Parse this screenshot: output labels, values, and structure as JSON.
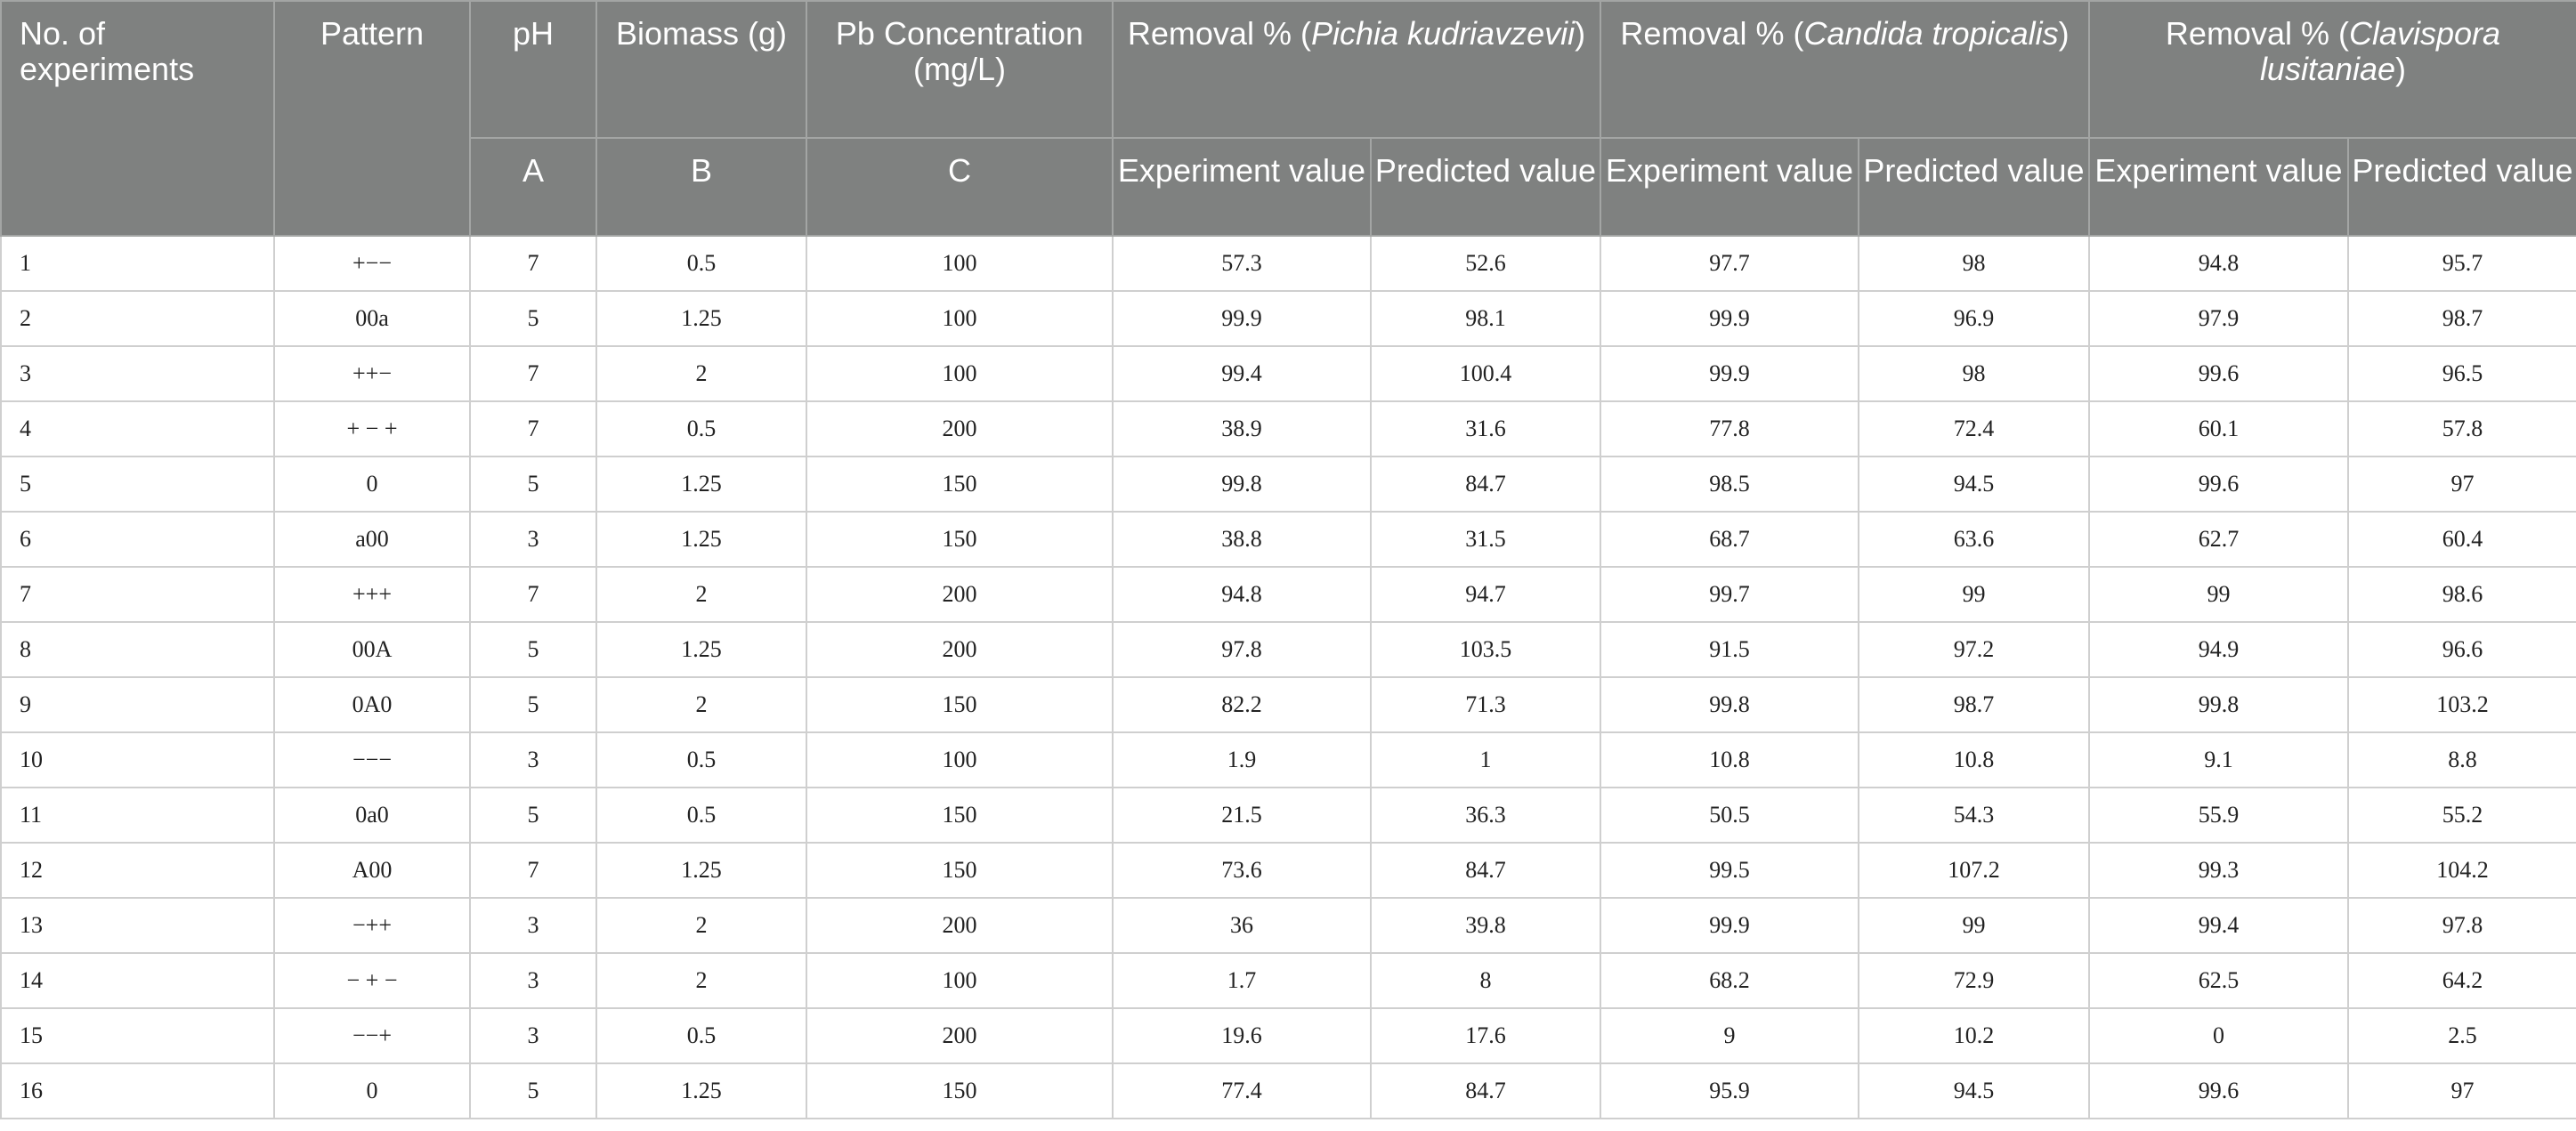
{
  "header": {
    "no_experiments": "No. of experiments",
    "pattern": "Pattern",
    "ph": "pH",
    "biomass": "Biomass (g)",
    "pb_conc": "Pb Concentration (mg/L)",
    "removal_prefix": "Removal % (",
    "removal_suffix": ")",
    "species": [
      "Pichia kudriavzevii",
      "Candida tropicalis",
      "Clavispora lusitaniae"
    ],
    "code_a": "A",
    "code_b": "B",
    "code_c": "C",
    "experiment_value": "Experiment value",
    "predicted_value": "Predicted value"
  },
  "rows": [
    [
      "1",
      "+−−",
      "7",
      "0.5",
      "100",
      "57.3",
      "52.6",
      "97.7",
      "98",
      "94.8",
      "95.7"
    ],
    [
      "2",
      "00a",
      "5",
      "1.25",
      "100",
      "99.9",
      "98.1",
      "99.9",
      "96.9",
      "97.9",
      "98.7"
    ],
    [
      "3",
      "++−",
      "7",
      "2",
      "100",
      "99.4",
      "100.4",
      "99.9",
      "98",
      "99.6",
      "96.5"
    ],
    [
      "4",
      "+ − +",
      "7",
      "0.5",
      "200",
      "38.9",
      "31.6",
      "77.8",
      "72.4",
      "60.1",
      "57.8"
    ],
    [
      "5",
      "0",
      "5",
      "1.25",
      "150",
      "99.8",
      "84.7",
      "98.5",
      "94.5",
      "99.6",
      "97"
    ],
    [
      "6",
      "a00",
      "3",
      "1.25",
      "150",
      "38.8",
      "31.5",
      "68.7",
      "63.6",
      "62.7",
      "60.4"
    ],
    [
      "7",
      "+++",
      "7",
      "2",
      "200",
      "94.8",
      "94.7",
      "99.7",
      "99",
      "99",
      "98.6"
    ],
    [
      "8",
      "00A",
      "5",
      "1.25",
      "200",
      "97.8",
      "103.5",
      "91.5",
      "97.2",
      "94.9",
      "96.6"
    ],
    [
      "9",
      "0A0",
      "5",
      "2",
      "150",
      "82.2",
      "71.3",
      "99.8",
      "98.7",
      "99.8",
      "103.2"
    ],
    [
      "10",
      "−−−",
      "3",
      "0.5",
      "100",
      "1.9",
      "1",
      "10.8",
      "10.8",
      "9.1",
      "8.8"
    ],
    [
      "11",
      "0a0",
      "5",
      "0.5",
      "150",
      "21.5",
      "36.3",
      "50.5",
      "54.3",
      "55.9",
      "55.2"
    ],
    [
      "12",
      "A00",
      "7",
      "1.25",
      "150",
      "73.6",
      "84.7",
      "99.5",
      "107.2",
      "99.3",
      "104.2"
    ],
    [
      "13",
      "−++",
      "3",
      "2",
      "200",
      "36",
      "39.8",
      "99.9",
      "99",
      "99.4",
      "97.8"
    ],
    [
      "14",
      "− + −",
      "3",
      "2",
      "100",
      "1.7",
      "8",
      "68.2",
      "72.9",
      "62.5",
      "64.2"
    ],
    [
      "15",
      "−−+",
      "3",
      "0.5",
      "200",
      "19.6",
      "17.6",
      "9",
      "10.2",
      "0",
      "2.5"
    ],
    [
      "16",
      "0",
      "5",
      "1.25",
      "150",
      "77.4",
      "84.7",
      "95.9",
      "94.5",
      "99.6",
      "97"
    ]
  ]
}
